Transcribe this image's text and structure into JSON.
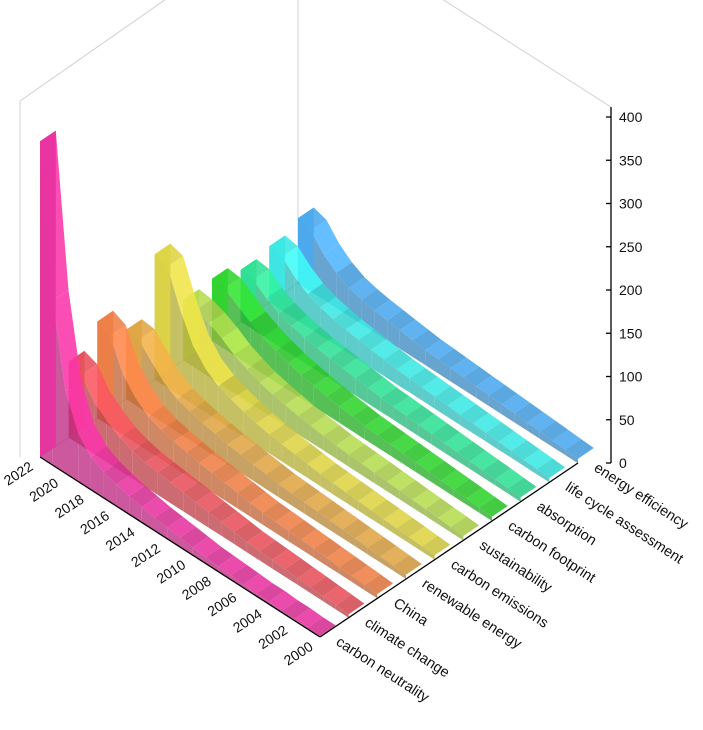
{
  "chart_data": {
    "type": "area",
    "title": "",
    "xlabel": "",
    "ylabel": "",
    "zlabel": "",
    "x": [
      2000,
      2001,
      2002,
      2003,
      2004,
      2005,
      2006,
      2007,
      2008,
      2009,
      2010,
      2011,
      2012,
      2013,
      2014,
      2015,
      2016,
      2017,
      2018,
      2019,
      2020,
      2021,
      2022
    ],
    "x_tick_labels": [
      "2000",
      "2002",
      "2004",
      "2006",
      "2008",
      "2010",
      "2012",
      "2014",
      "2016",
      "2018",
      "2020",
      "2022"
    ],
    "z_ticks": [
      "0",
      "50",
      "100",
      "150",
      "200",
      "250",
      "300",
      "350",
      "400"
    ],
    "zlim": [
      0,
      400
    ],
    "grid": false,
    "series": [
      {
        "name": "carbon neutrality",
        "color": "#e8329e",
        "values": [
          1,
          1,
          2,
          2,
          3,
          3,
          4,
          5,
          6,
          7,
          9,
          11,
          13,
          15,
          18,
          21,
          25,
          30,
          38,
          55,
          95,
          190,
          365
        ]
      },
      {
        "name": "climate change",
        "color": "#e8505a",
        "values": [
          4,
          5,
          6,
          7,
          8,
          9,
          10,
          11,
          12,
          14,
          16,
          18,
          20,
          22,
          24,
          26,
          28,
          32,
          38,
          48,
          60,
          82,
          88
        ]
      },
      {
        "name": "China",
        "color": "#ee7e45",
        "values": [
          5,
          6,
          7,
          8,
          9,
          10,
          11,
          12,
          13,
          14,
          16,
          18,
          20,
          22,
          24,
          27,
          30,
          34,
          40,
          52,
          70,
          105,
          112
        ]
      },
      {
        "name": "renewable energy",
        "color": "#e0a544",
        "values": [
          5,
          6,
          7,
          8,
          9,
          10,
          11,
          12,
          13,
          14,
          15,
          17,
          19,
          21,
          23,
          26,
          29,
          33,
          38,
          47,
          62,
          78,
          80
        ]
      },
      {
        "name": "carbon emissions",
        "color": "#ded444",
        "values": [
          5,
          6,
          7,
          8,
          9,
          10,
          11,
          12,
          13,
          14,
          16,
          18,
          20,
          22,
          25,
          29,
          34,
          40,
          50,
          68,
          100,
          140,
          145
        ]
      },
      {
        "name": "sustainability",
        "color": "#b4dc50",
        "values": [
          5,
          6,
          7,
          8,
          9,
          10,
          11,
          12,
          13,
          14,
          15,
          17,
          19,
          21,
          24,
          27,
          31,
          37,
          44,
          54,
          62,
          68,
          70
        ]
      },
      {
        "name": "carbon footprint",
        "color": "#2fd42e",
        "values": [
          5,
          6,
          7,
          8,
          9,
          10,
          11,
          12,
          13,
          14,
          15,
          17,
          19,
          21,
          24,
          27,
          31,
          36,
          42,
          50,
          60,
          70,
          72
        ]
      },
      {
        "name": "absorption",
        "color": "#2ee095",
        "values": [
          5,
          6,
          7,
          8,
          9,
          10,
          11,
          12,
          13,
          14,
          15,
          16,
          18,
          20,
          22,
          24,
          26,
          29,
          33,
          38,
          46,
          58,
          60
        ]
      },
      {
        "name": "life cycle assessment",
        "color": "#3be8e4",
        "values": [
          5,
          6,
          7,
          8,
          9,
          10,
          11,
          12,
          13,
          14,
          15,
          16,
          17,
          19,
          21,
          23,
          25,
          28,
          32,
          38,
          48,
          62,
          65
        ]
      },
      {
        "name": "energy efficiency",
        "color": "#4aa8ee",
        "values": [
          5,
          6,
          7,
          8,
          9,
          10,
          11,
          12,
          13,
          14,
          15,
          16,
          17,
          19,
          21,
          23,
          25,
          28,
          32,
          40,
          52,
          70,
          75
        ]
      }
    ]
  }
}
